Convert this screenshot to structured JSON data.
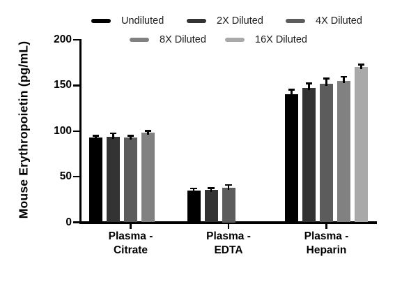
{
  "chart_data": {
    "type": "bar",
    "title": "",
    "ylabel": "Mouse Erythropoietin (pg/mL)",
    "xlabel": "",
    "ylim": [
      0,
      200
    ],
    "yticks": [
      0,
      50,
      100,
      150,
      200
    ],
    "grid": false,
    "legend_position": "top",
    "error_bars": "upper",
    "categories": [
      {
        "line1": "Plasma -",
        "line2": "Citrate"
      },
      {
        "line1": "Plasma -",
        "line2": "EDTA"
      },
      {
        "line1": "Plasma -",
        "line2": "Heparin"
      }
    ],
    "series": [
      {
        "name": "Undiluted",
        "color": "#000000",
        "values": [
          93,
          35,
          140
        ],
        "errors": [
          1.5,
          1.5,
          5
        ]
      },
      {
        "name": "2X Diluted",
        "color": "#333333",
        "values": [
          94,
          35.5,
          147
        ],
        "errors": [
          3,
          1.5,
          4.5
        ]
      },
      {
        "name": "4X Diluted",
        "color": "#5c5c5c",
        "values": [
          93,
          37.5,
          152
        ],
        "errors": [
          1.5,
          3,
          5
        ]
      },
      {
        "name": "8X Diluted",
        "color": "#818181",
        "values": [
          98,
          null,
          155
        ],
        "errors": [
          1.5,
          null,
          4
        ]
      },
      {
        "name": "16X Diluted",
        "color": "#a9a9a9",
        "values": [
          null,
          null,
          170
        ],
        "errors": [
          null,
          null,
          2.5
        ]
      }
    ],
    "units": "pg/mL"
  }
}
